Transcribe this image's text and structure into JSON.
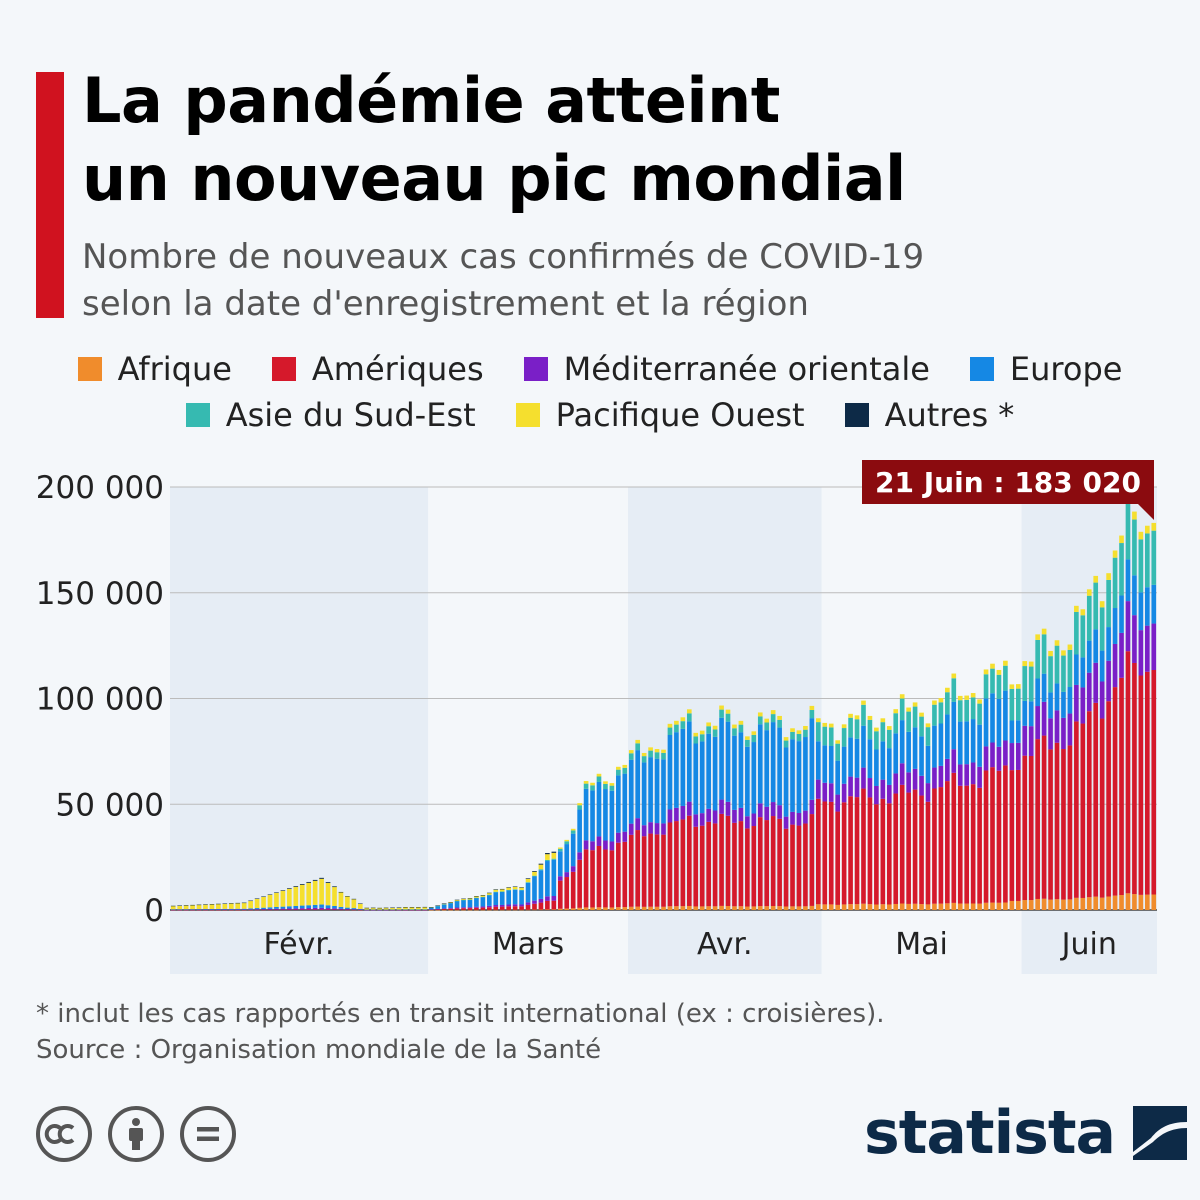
{
  "title": {
    "line1": "La pandémie atteint",
    "line2": "un nouveau pic mondial"
  },
  "subtitle": {
    "line1": "Nombre de nouveaux cas confirmés de COVID-19",
    "line2": "selon la date d'enregistrement et la région"
  },
  "colors": {
    "accent": "#d0121f",
    "afrique": "#f08c2c",
    "ameriques": "#d5192b",
    "mediterranee": "#7a1fc7",
    "europe": "#1588e4",
    "asie_se": "#36bab1",
    "pacifique": "#f5df2e",
    "autres": "#0d2a47",
    "callout": "#8b0b0f"
  },
  "legend": [
    {
      "label": "Afrique",
      "color": "#f08c2c"
    },
    {
      "label": "Amériques",
      "color": "#d5192b"
    },
    {
      "label": "Méditerranée orientale",
      "color": "#7a1fc7"
    },
    {
      "label": "Europe",
      "color": "#1588e4"
    },
    {
      "label": "Asie du Sud-Est",
      "color": "#36bab1"
    },
    {
      "label": "Pacifique Ouest",
      "color": "#f5df2e"
    },
    {
      "label": "Autres *",
      "color": "#0d2a47"
    }
  ],
  "chart_data": {
    "type": "bar",
    "stacked": true,
    "x_range": [
      "2020-01-21",
      "2020-06-21"
    ],
    "ylim": [
      0,
      200000
    ],
    "yticks": [
      "0",
      "50 000",
      "100 000",
      "150 000",
      "200 000"
    ],
    "ytick_values": [
      0,
      50000,
      100000,
      150000,
      200000
    ],
    "months": [
      "Févr.",
      "Mars",
      "Avr.",
      "Mai",
      "Juin"
    ],
    "legend_position": "top",
    "grid": true,
    "annotation": "21 Juin : 183 020",
    "series_names": [
      "Afrique",
      "Amériques",
      "Méditerranée orientale",
      "Europe",
      "Asie du Sud-Est",
      "Pacifique Ouest",
      "Autres *"
    ],
    "daily_total_anchors": [
      {
        "date": "2020-01-21",
        "total": 2000
      },
      {
        "date": "2020-02-01",
        "total": 3500
      },
      {
        "date": "2020-02-13",
        "total": 15200
      },
      {
        "date": "2020-02-20",
        "total": 1000
      },
      {
        "date": "2020-03-01",
        "total": 1500
      },
      {
        "date": "2020-03-15",
        "total": 12000
      },
      {
        "date": "2020-03-22",
        "total": 34000
      },
      {
        "date": "2020-03-25",
        "total": 57000
      },
      {
        "date": "2020-04-01",
        "total": 72000
      },
      {
        "date": "2020-04-10",
        "total": 90000
      },
      {
        "date": "2020-05-01",
        "total": 88000
      },
      {
        "date": "2020-05-15",
        "total": 95000
      },
      {
        "date": "2020-05-31",
        "total": 115000
      },
      {
        "date": "2020-06-10",
        "total": 138000
      },
      {
        "date": "2020-06-16",
        "total": 180000
      },
      {
        "date": "2020-06-21",
        "total": 183020
      }
    ]
  },
  "footnote": {
    "note": "* inclut les cas rapportés en transit international (ex : croisières).",
    "source": "Source : Organisation mondiale de la Santé"
  },
  "logo": {
    "wordmark": "statista"
  }
}
